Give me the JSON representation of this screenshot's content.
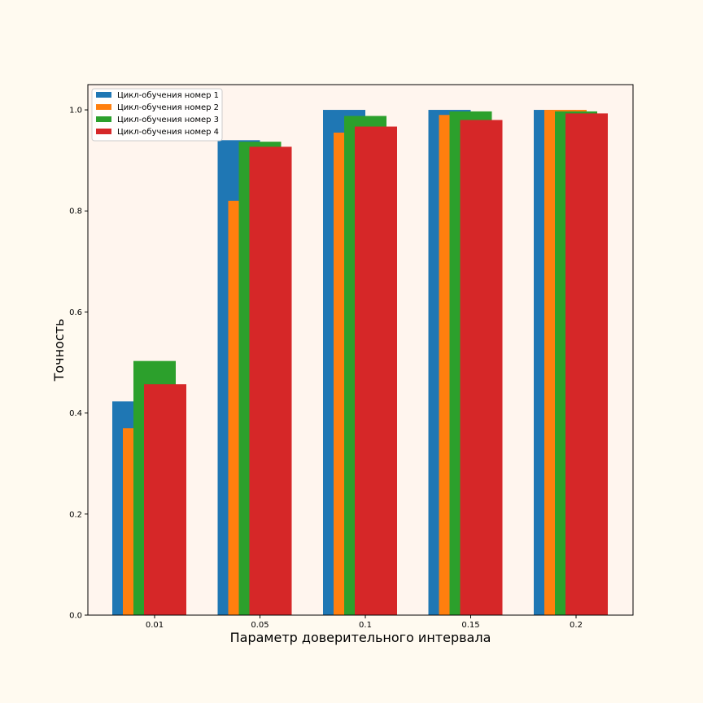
{
  "colors": {
    "figure_bg": "#fffaf0",
    "axes_bg": "#fff5ee"
  },
  "chart_data": {
    "type": "bar",
    "xlabel": "Параметр доверительного интервала",
    "ylabel": "Точность",
    "ylim": [
      0,
      1.05
    ],
    "yticks": [
      "0.0",
      "0.2",
      "0.4",
      "0.6",
      "0.8",
      "1.0"
    ],
    "categories": [
      "0.01",
      "0.05",
      "0.1",
      "0.15",
      "0.2"
    ],
    "legend_position": "top-left",
    "grid": false,
    "series": [
      {
        "name": "Цикл-обучения номер 1",
        "color": "#1f77b4",
        "values": [
          0.423,
          0.94,
          1.0,
          1.0,
          1.0
        ]
      },
      {
        "name": "Цикл-обучения номер 2",
        "color": "#ff7f0e",
        "values": [
          0.37,
          0.82,
          0.955,
          0.99,
          1.0
        ]
      },
      {
        "name": "Цикл-обучения номер 3",
        "color": "#2ca02c",
        "values": [
          0.503,
          0.937,
          0.988,
          0.997,
          0.997
        ]
      },
      {
        "name": "Цикл-обучения номер 4",
        "color": "#d62728",
        "values": [
          0.457,
          0.927,
          0.967,
          0.98,
          0.993
        ]
      }
    ]
  }
}
